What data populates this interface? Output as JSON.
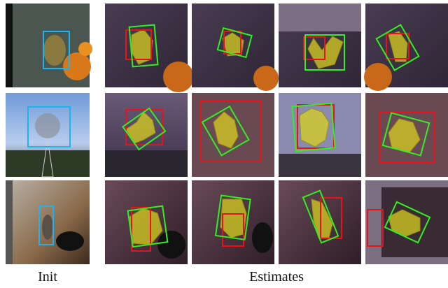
{
  "labels": {
    "init": "Init",
    "estimates": "Estimates"
  }
}
